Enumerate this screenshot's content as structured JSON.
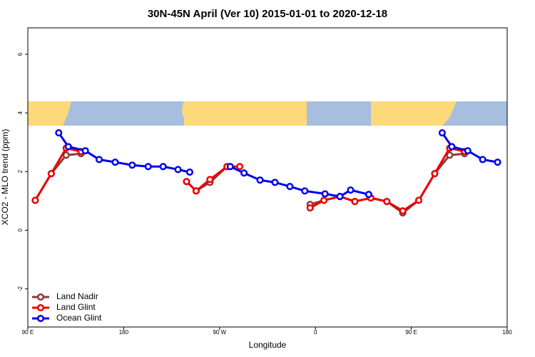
{
  "chart_data": {
    "type": "line",
    "title": "30N-45N April (Ver 10)   2015-01-01 to 2020-12-18",
    "x_label": "Longitude",
    "y_label": "XCO2 - MLO trend (ppm)",
    "xlim": [
      90,
      540
    ],
    "ylim": [
      -3.3,
      6.9
    ],
    "xticks": [
      {
        "value": 90,
        "label": "90 E"
      },
      180,
      {
        "value": 270,
        "label": "90 W"
      },
      {
        "value": 360,
        "label": "0"
      },
      {
        "value": 450,
        "label": "90 E"
      },
      {
        "value": 540,
        "label": "180"
      }
    ],
    "yticks": [
      -2,
      0,
      2,
      4,
      6
    ],
    "legend": "bottom-left",
    "series": [
      {
        "name": "Land Nadir",
        "color": "#8b3a3a",
        "x": [
          97,
          112,
          126,
          140,
          null,
          239,
          248,
          261,
          277,
          null,
          355,
          368,
          383,
          397,
          412,
          427,
          442,
          457,
          472,
          486,
          500
        ],
        "values": [
          1.02,
          1.93,
          2.56,
          2.61,
          null,
          1.66,
          1.34,
          1.63,
          2.17,
          null,
          0.88,
          1.02,
          1.15,
          0.98,
          1.1,
          0.98,
          0.59,
          1.02,
          1.93,
          2.56,
          2.61
        ]
      },
      {
        "name": "Land Glint",
        "color": "#ee0000",
        "x": [
          97,
          112,
          126,
          140,
          null,
          239,
          248,
          261,
          277,
          289,
          null,
          355,
          368,
          383,
          397,
          412,
          427,
          442,
          457,
          472,
          486,
          500
        ],
        "values": [
          1.02,
          1.93,
          2.8,
          2.68,
          null,
          1.66,
          1.34,
          1.73,
          2.17,
          2.17,
          null,
          0.76,
          1.02,
          1.15,
          0.98,
          1.1,
          0.98,
          0.66,
          1.02,
          1.93,
          2.8,
          2.68
        ]
      },
      {
        "name": "Ocean Glint",
        "color": "#0000ee",
        "x": [
          119,
          128,
          144,
          157,
          172,
          188,
          203,
          217,
          231,
          242,
          null,
          280,
          293,
          308,
          322,
          336,
          350,
          369,
          383,
          393,
          410,
          null,
          479,
          488,
          503,
          517,
          531
        ],
        "values": [
          3.32,
          2.85,
          2.71,
          2.41,
          2.32,
          2.22,
          2.17,
          2.17,
          2.07,
          1.98,
          null,
          2.17,
          1.95,
          1.71,
          1.63,
          1.49,
          1.34,
          1.24,
          1.15,
          1.37,
          1.22,
          null,
          3.32,
          2.85,
          2.71,
          2.41,
          2.32
        ]
      }
    ]
  }
}
